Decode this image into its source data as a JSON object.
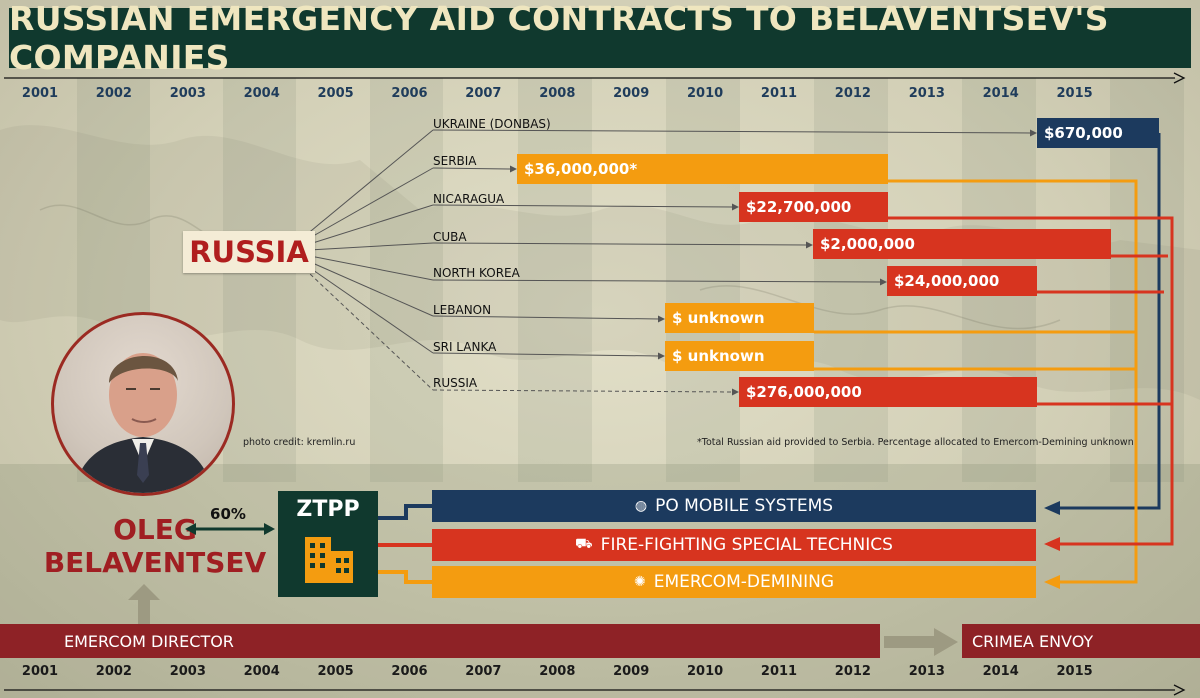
{
  "title": "RUSSIAN EMERGENCY AID CONTRACTS TO BELAVENTSEV'S COMPANIES",
  "years": [
    "2001",
    "2002",
    "2003",
    "2004",
    "2005",
    "2006",
    "2007",
    "2008",
    "2009",
    "2010",
    "2011",
    "2012",
    "2013",
    "2014",
    "2015"
  ],
  "source_label": "RUSSIA",
  "destinations": [
    {
      "country": "UKRAINE (DONBAS)",
      "amount": "$670,000",
      "color": "#1c3a5e"
    },
    {
      "country": "SERBIA",
      "amount": "$36,000,000*",
      "color": "#f49c10"
    },
    {
      "country": "NICARAGUA",
      "amount": "$22,700,000",
      "color": "#d7341f"
    },
    {
      "country": "CUBA",
      "amount": "$2,000,000",
      "color": "#d7341f"
    },
    {
      "country": "NORTH KOREA",
      "amount": "$24,000,000",
      "color": "#d7341f"
    },
    {
      "country": "LEBANON",
      "amount": "$ unknown",
      "color": "#f49c10"
    },
    {
      "country": "SRI LANKA",
      "amount": "$ unknown",
      "color": "#f49c10"
    },
    {
      "country": "RUSSIA",
      "amount": "$276,000,000",
      "color": "#d7341f"
    }
  ],
  "photo_credit": "photo credit: kremlin.ru",
  "footnote": "*Total Russian aid provided to Serbia. Percentage allocated to Emercom-Demining unknown.",
  "person": {
    "first": "OLEG",
    "last": "BELAVENTSEV"
  },
  "ownership": "60%",
  "ztpp": "ZTPP",
  "companies": [
    {
      "name": "PO MOBILE SYSTEMS",
      "color": "#1c3a5e"
    },
    {
      "name": "FIRE-FIGHTING SPECIAL TECHNICS",
      "color": "#d7341f"
    },
    {
      "name": "EMERCOM-DEMINING",
      "color": "#f49c10"
    }
  ],
  "career": {
    "emercom": "EMERCOM DIRECTOR",
    "crimea": "CRIMEA ENVOY"
  },
  "colors": {
    "title_bg": "#10392e",
    "title_text": "#efe6bf",
    "red": "#d7341f",
    "orange": "#f49c10",
    "navy": "#1c3a5e",
    "career": "#8e2226"
  }
}
